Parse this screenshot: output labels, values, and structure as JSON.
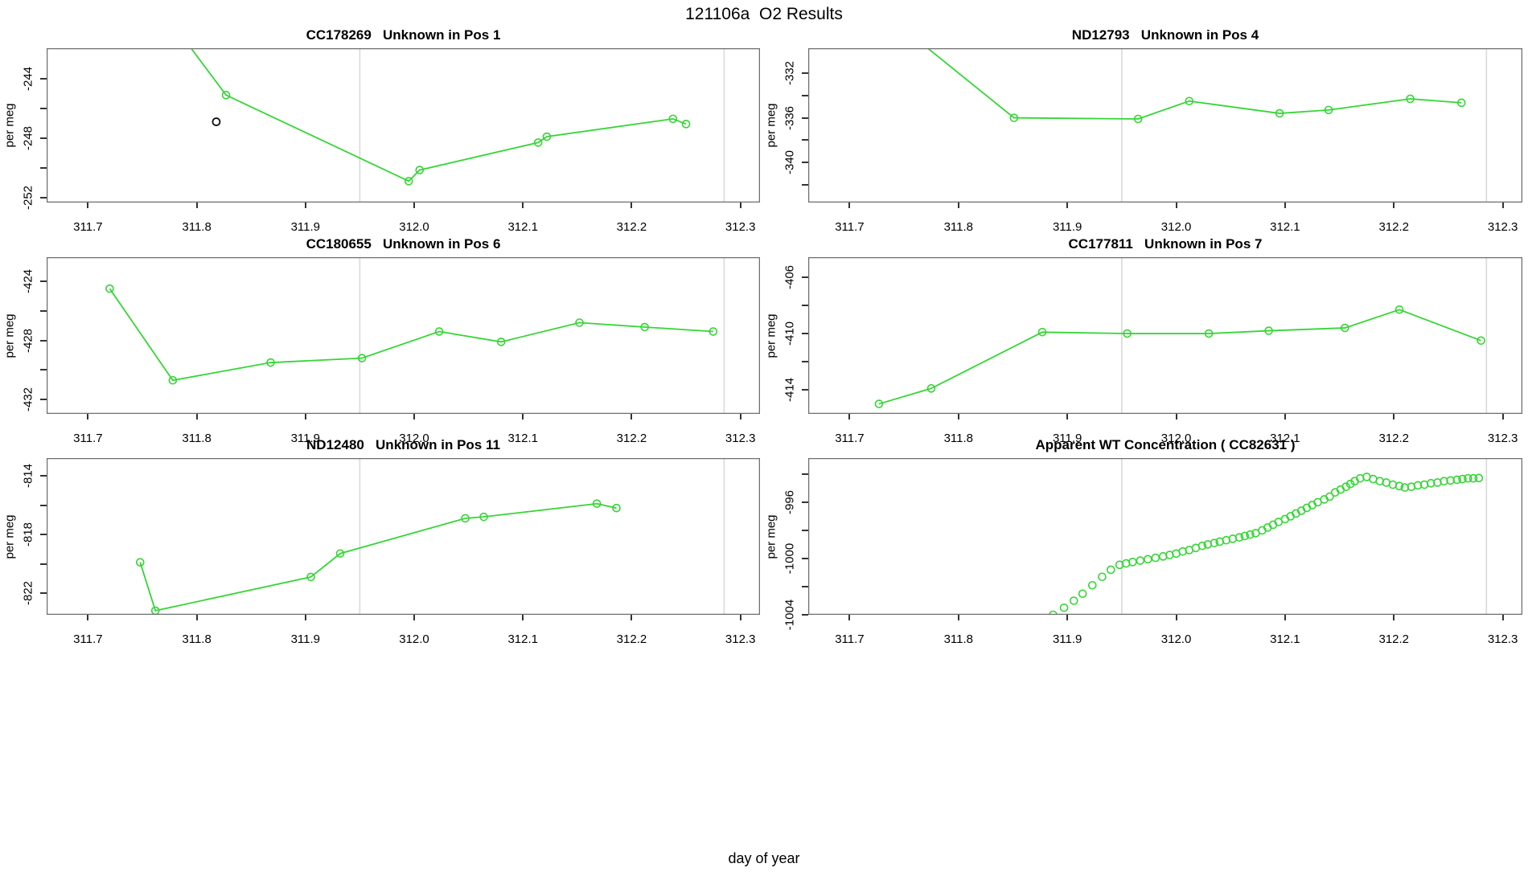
{
  "title": "121106a  O2 Results",
  "xlabel": "day of year",
  "colors": {
    "series_green": "#35d635",
    "outlier_black": "#111111",
    "event_line_gray": "#d9d9d9",
    "box_border": "#6e6e6e",
    "tick": "#333333",
    "text": "#000000"
  },
  "xticks": {
    "values": [
      311.7,
      311.8,
      311.9,
      312.0,
      312.1,
      312.2,
      312.3
    ],
    "labels": [
      "311.7",
      "311.8",
      "311.9",
      "312.0",
      "312.1",
      "312.2",
      "312.3"
    ]
  },
  "chart_data": [
    {
      "type": "line",
      "name": "cc178269-pos1",
      "title": "CC178269   Unknown in Pos 1",
      "ylabel": "per meg",
      "xlabel": "day of year",
      "xlim": [
        311.662,
        312.318
      ],
      "ylim": [
        -252.34,
        -241.94
      ],
      "grid": false,
      "legend": "none",
      "vlines": [
        311.95,
        312.285
      ],
      "yticks": [
        {
          "v": -244,
          "label": "-244"
        },
        {
          "v": -246,
          "label": ""
        },
        {
          "v": -248,
          "label": "-248"
        },
        {
          "v": -250,
          "label": ""
        },
        {
          "v": -252,
          "label": "-252"
        }
      ],
      "draw_line": true,
      "marker_start_index": 1,
      "points": [
        [
          311.77,
          -239.5
        ],
        [
          311.827,
          -245.1
        ],
        [
          311.995,
          -250.9
        ],
        [
          312.005,
          -250.15
        ],
        [
          312.114,
          -248.3
        ],
        [
          312.122,
          -247.9
        ],
        [
          312.238,
          -246.7
        ],
        [
          312.25,
          -247.05
        ]
      ],
      "outlier_points": [
        [
          311.818,
          -246.9
        ]
      ]
    },
    {
      "type": "line",
      "name": "nd12793-pos4",
      "title": "ND12793   Unknown in Pos 4",
      "ylabel": "per meg",
      "xlabel": "day of year",
      "xlim": [
        311.662,
        312.318
      ],
      "ylim": [
        -343.58,
        -329.77
      ],
      "grid": false,
      "legend": "none",
      "vlines": [
        311.95,
        312.285
      ],
      "yticks": [
        {
          "v": -332,
          "label": "-332"
        },
        {
          "v": -334,
          "label": ""
        },
        {
          "v": -336,
          "label": "-336"
        },
        {
          "v": -338,
          "label": ""
        },
        {
          "v": -340,
          "label": "-340"
        },
        {
          "v": -342,
          "label": ""
        }
      ],
      "draw_line": true,
      "marker_start_index": 1,
      "points": [
        [
          311.762,
          -329.0
        ],
        [
          311.851,
          -336.0
        ],
        [
          311.965,
          -336.1
        ],
        [
          312.012,
          -334.5
        ],
        [
          312.095,
          -335.6
        ],
        [
          312.14,
          -335.3
        ],
        [
          312.215,
          -334.3
        ],
        [
          312.262,
          -334.65
        ]
      ],
      "outlier_points": []
    },
    {
      "type": "line",
      "name": "cc180655-pos6",
      "title": "CC180655   Unknown in Pos 6",
      "ylabel": "per meg",
      "xlabel": "day of year",
      "xlim": [
        311.662,
        312.318
      ],
      "ylim": [
        -432.97,
        -422.37
      ],
      "grid": false,
      "legend": "none",
      "vlines": [
        311.95,
        312.285
      ],
      "yticks": [
        {
          "v": -424,
          "label": "-424"
        },
        {
          "v": -426,
          "label": ""
        },
        {
          "v": -428,
          "label": "-428"
        },
        {
          "v": -430,
          "label": ""
        },
        {
          "v": -432,
          "label": "-432"
        }
      ],
      "draw_line": true,
      "marker_start_index": 0,
      "points": [
        [
          311.72,
          -424.5
        ],
        [
          311.778,
          -430.7
        ],
        [
          311.868,
          -429.5
        ],
        [
          311.952,
          -429.2
        ],
        [
          312.023,
          -427.4
        ],
        [
          312.08,
          -428.1
        ],
        [
          312.152,
          -426.8
        ],
        [
          312.212,
          -427.1
        ],
        [
          312.275,
          -427.4
        ]
      ],
      "outlier_points": []
    },
    {
      "type": "line",
      "name": "cc177811-pos7",
      "title": "CC177811   Unknown in Pos 7",
      "ylabel": "per meg",
      "xlabel": "day of year",
      "xlim": [
        311.662,
        312.318
      ],
      "ylim": [
        -415.71,
        -404.57
      ],
      "grid": false,
      "legend": "none",
      "vlines": [
        311.95,
        312.285
      ],
      "yticks": [
        {
          "v": -406,
          "label": "-406"
        },
        {
          "v": -408,
          "label": ""
        },
        {
          "v": -410,
          "label": "-410"
        },
        {
          "v": -412,
          "label": ""
        },
        {
          "v": -414,
          "label": "-414"
        }
      ],
      "draw_line": true,
      "marker_start_index": 0,
      "points": [
        [
          311.727,
          -415.0
        ],
        [
          311.775,
          -413.9
        ],
        [
          311.877,
          -409.9
        ],
        [
          311.955,
          -410.0
        ],
        [
          312.03,
          -410.0
        ],
        [
          312.085,
          -409.8
        ],
        [
          312.155,
          -409.6
        ],
        [
          312.205,
          -408.3
        ],
        [
          312.28,
          -410.5
        ]
      ],
      "outlier_points": []
    },
    {
      "type": "line",
      "name": "nd12480-pos11",
      "title": "ND12480   Unknown in Pos 11",
      "ylabel": "per meg",
      "xlabel": "day of year",
      "xlim": [
        311.662,
        312.318
      ],
      "ylim": [
        -823.48,
        -812.79
      ],
      "grid": false,
      "legend": "none",
      "vlines": [
        311.95,
        312.285
      ],
      "yticks": [
        {
          "v": -814,
          "label": "-814"
        },
        {
          "v": -816,
          "label": ""
        },
        {
          "v": -818,
          "label": "-818"
        },
        {
          "v": -820,
          "label": ""
        },
        {
          "v": -822,
          "label": "-822"
        }
      ],
      "draw_line": true,
      "marker_start_index": 0,
      "points": [
        [
          311.748,
          -819.9
        ],
        [
          311.762,
          -823.2
        ],
        [
          311.905,
          -820.9
        ],
        [
          311.932,
          -819.3
        ],
        [
          312.047,
          -816.9
        ],
        [
          312.064,
          -816.8
        ],
        [
          312.168,
          -815.9
        ],
        [
          312.186,
          -816.2
        ]
      ],
      "outlier_points": []
    },
    {
      "type": "scatter",
      "name": "apparent-wt-cc82631",
      "title": "Apparent WT Concentration ( CC82631 )",
      "ylabel": "per meg",
      "xlabel": "day of year",
      "xlim": [
        311.662,
        312.318
      ],
      "ylim": [
        -1004.0,
        -992.86
      ],
      "grid": false,
      "legend": "none",
      "vlines": [
        311.95,
        312.285
      ],
      "yticks": [
        {
          "v": -994,
          "label": ""
        },
        {
          "v": -996,
          "label": "-996"
        },
        {
          "v": -998,
          "label": ""
        },
        {
          "v": -1000,
          "label": "-1000"
        },
        {
          "v": -1002,
          "label": ""
        },
        {
          "v": -1004,
          "label": "-1004"
        }
      ],
      "draw_line": false,
      "marker_start_index": 0,
      "points": [
        [
          311.887,
          -1004.0
        ],
        [
          311.897,
          -1003.5
        ],
        [
          311.906,
          -1003.0
        ],
        [
          311.914,
          -1002.5
        ],
        [
          311.923,
          -1001.9
        ],
        [
          311.932,
          -1001.3
        ],
        [
          311.94,
          -1000.8
        ],
        [
          311.948,
          -1000.45
        ],
        [
          311.954,
          -1000.35
        ],
        [
          311.96,
          -1000.25
        ],
        [
          311.967,
          -1000.15
        ],
        [
          311.974,
          -1000.05
        ],
        [
          311.981,
          -999.95
        ],
        [
          311.988,
          -999.85
        ],
        [
          311.994,
          -999.75
        ],
        [
          312.0,
          -999.65
        ],
        [
          312.006,
          -999.5
        ],
        [
          312.012,
          -999.4
        ],
        [
          312.018,
          -999.25
        ],
        [
          312.024,
          -999.1
        ],
        [
          312.029,
          -999.0
        ],
        [
          312.035,
          -998.9
        ],
        [
          312.04,
          -998.8
        ],
        [
          312.046,
          -998.7
        ],
        [
          312.052,
          -998.6
        ],
        [
          312.058,
          -998.5
        ],
        [
          312.063,
          -998.4
        ],
        [
          312.068,
          -998.3
        ],
        [
          312.073,
          -998.2
        ],
        [
          312.079,
          -998.0
        ],
        [
          312.084,
          -997.8
        ],
        [
          312.089,
          -997.6
        ],
        [
          312.094,
          -997.4
        ],
        [
          312.1,
          -997.2
        ],
        [
          312.105,
          -997.0
        ],
        [
          312.11,
          -996.8
        ],
        [
          312.115,
          -996.6
        ],
        [
          312.12,
          -996.4
        ],
        [
          312.125,
          -996.2
        ],
        [
          312.13,
          -996.0
        ],
        [
          312.136,
          -995.8
        ],
        [
          312.141,
          -995.6
        ],
        [
          312.146,
          -995.3
        ],
        [
          312.151,
          -995.1
        ],
        [
          312.156,
          -994.9
        ],
        [
          312.16,
          -994.7
        ],
        [
          312.164,
          -994.5
        ],
        [
          312.169,
          -994.3
        ],
        [
          312.175,
          -994.2
        ],
        [
          312.181,
          -994.35
        ],
        [
          312.187,
          -994.5
        ],
        [
          312.193,
          -994.6
        ],
        [
          312.199,
          -994.75
        ],
        [
          312.205,
          -994.85
        ],
        [
          312.21,
          -994.95
        ],
        [
          312.216,
          -994.9
        ],
        [
          312.222,
          -994.8
        ],
        [
          312.228,
          -994.75
        ],
        [
          312.234,
          -994.65
        ],
        [
          312.24,
          -994.6
        ],
        [
          312.246,
          -994.5
        ],
        [
          312.252,
          -994.45
        ],
        [
          312.258,
          -994.4
        ],
        [
          312.263,
          -994.35
        ],
        [
          312.268,
          -994.3
        ],
        [
          312.273,
          -994.3
        ],
        [
          312.278,
          -994.28
        ]
      ],
      "outlier_points": []
    }
  ]
}
